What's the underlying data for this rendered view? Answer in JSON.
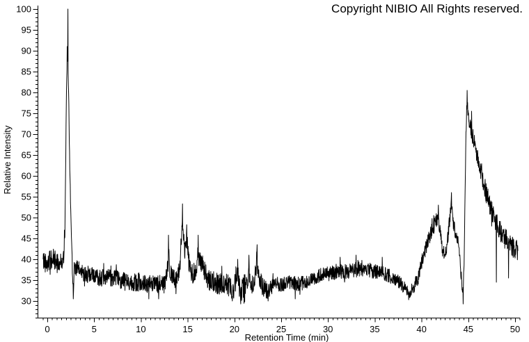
{
  "page": {
    "background": "#ffffff"
  },
  "header": {
    "copyright": "Copyright NIBIO All Rights reserved."
  },
  "chart_data": {
    "type": "line",
    "title": "",
    "xlabel": "Retention Time (min)",
    "ylabel": "Relative Intensity",
    "xlim": [
      0,
      50
    ],
    "ylim": [
      30,
      100
    ],
    "x_major_ticks": [
      0,
      5,
      10,
      15,
      20,
      25,
      30,
      35,
      40,
      45,
      50
    ],
    "x_minor_step": 0.5,
    "y_major_ticks": [
      30,
      35,
      40,
      45,
      50,
      55,
      60,
      65,
      70,
      75,
      80,
      85,
      90,
      95,
      100
    ],
    "y_minor_step": 1,
    "grid": false,
    "legend": null,
    "line_color": "#000000",
    "background_color": "#ffffff",
    "peaks": [
      {
        "t": 2.2,
        "intensity": 100
      },
      {
        "t": 13.0,
        "intensity": 46
      },
      {
        "t": 14.45,
        "intensity": 53
      },
      {
        "t": 14.9,
        "intensity": 48
      },
      {
        "t": 16.1,
        "intensity": 46
      },
      {
        "t": 22.4,
        "intensity": 43.5
      },
      {
        "t": 41.8,
        "intensity": 53
      },
      {
        "t": 43.2,
        "intensity": 56
      },
      {
        "t": 44.85,
        "intensity": 80.5
      }
    ],
    "trace": {
      "sample_step": 0.025,
      "seed": 42,
      "t_start": -0.45,
      "t_end": 50.32,
      "envelope": [
        [
          -0.45,
          39.5
        ],
        [
          0,
          39.5
        ],
        [
          0.6,
          40
        ],
        [
          1.2,
          39
        ],
        [
          1.6,
          39.5
        ],
        [
          1.8,
          41
        ],
        [
          1.88,
          46
        ],
        [
          1.95,
          60
        ],
        [
          2.0,
          72
        ],
        [
          2.05,
          80
        ],
        [
          2.1,
          85
        ],
        [
          2.15,
          87
        ],
        [
          2.2,
          88
        ],
        [
          2.25,
          83
        ],
        [
          2.3,
          76
        ],
        [
          2.35,
          69
        ],
        [
          2.4,
          62
        ],
        [
          2.5,
          52
        ],
        [
          2.6,
          44
        ],
        [
          2.7,
          37
        ],
        [
          2.78,
          33
        ],
        [
          2.9,
          38.5
        ],
        [
          3.3,
          37.5
        ],
        [
          4,
          36.5
        ],
        [
          5,
          36
        ],
        [
          6,
          35.5
        ],
        [
          7,
          35.5
        ],
        [
          8,
          35
        ],
        [
          9,
          34.5
        ],
        [
          10,
          34.5
        ],
        [
          11,
          34
        ],
        [
          12,
          34
        ],
        [
          12.6,
          34.5
        ],
        [
          12.9,
          38
        ],
        [
          13.0,
          41
        ],
        [
          13.1,
          37
        ],
        [
          13.4,
          35.5
        ],
        [
          13.8,
          35
        ],
        [
          14.1,
          37
        ],
        [
          14.3,
          44
        ],
        [
          14.45,
          49
        ],
        [
          14.55,
          46
        ],
        [
          14.7,
          42
        ],
        [
          14.85,
          44
        ],
        [
          14.95,
          44
        ],
        [
          15.1,
          40
        ],
        [
          15.3,
          37
        ],
        [
          15.6,
          36.5
        ],
        [
          15.95,
          38
        ],
        [
          16.1,
          42
        ],
        [
          16.25,
          39
        ],
        [
          16.5,
          39.5
        ],
        [
          16.7,
          37.5
        ],
        [
          17.1,
          35.5
        ],
        [
          17.5,
          34.5
        ],
        [
          18,
          34.5
        ],
        [
          18.5,
          34
        ],
        [
          19,
          34.5
        ],
        [
          19.5,
          33.5
        ],
        [
          19.8,
          32.5
        ],
        [
          20.1,
          34
        ],
        [
          20.35,
          36.5
        ],
        [
          20.65,
          31.5
        ],
        [
          21,
          33.5
        ],
        [
          21.3,
          34.5
        ],
        [
          21.55,
          36.5
        ],
        [
          21.9,
          33.5
        ],
        [
          22.2,
          35.5
        ],
        [
          22.4,
          40
        ],
        [
          22.6,
          36
        ],
        [
          23,
          33.5
        ],
        [
          23.5,
          32.5
        ],
        [
          24,
          33.5
        ],
        [
          24.5,
          34
        ],
        [
          25,
          34
        ],
        [
          26,
          34.5
        ],
        [
          27,
          34
        ],
        [
          28,
          35
        ],
        [
          29,
          36
        ],
        [
          30,
          36.5
        ],
        [
          31,
          37
        ],
        [
          32,
          37
        ],
        [
          33,
          37.5
        ],
        [
          34,
          37.5
        ],
        [
          35,
          37
        ],
        [
          36,
          36.5
        ],
        [
          37,
          35.5
        ],
        [
          37.7,
          34.5
        ],
        [
          38.2,
          33
        ],
        [
          38.7,
          31.8
        ],
        [
          39.2,
          33.5
        ],
        [
          39.7,
          36
        ],
        [
          40.2,
          41
        ],
        [
          40.7,
          44.5
        ],
        [
          41.1,
          47
        ],
        [
          41.45,
          48.5
        ],
        [
          41.75,
          50.5
        ],
        [
          42.0,
          46
        ],
        [
          42.3,
          41.5
        ],
        [
          42.6,
          42
        ],
        [
          42.9,
          47
        ],
        [
          43.1,
          52
        ],
        [
          43.2,
          54
        ],
        [
          43.35,
          49
        ],
        [
          43.55,
          47
        ],
        [
          43.75,
          45.5
        ],
        [
          43.95,
          44
        ],
        [
          44.2,
          37
        ],
        [
          44.4,
          31.5
        ],
        [
          44.55,
          38
        ],
        [
          44.65,
          55
        ],
        [
          44.75,
          70
        ],
        [
          44.85,
          77
        ],
        [
          44.95,
          76
        ],
        [
          45.1,
          73.5
        ],
        [
          45.3,
          71
        ],
        [
          45.6,
          68
        ],
        [
          45.9,
          65.5
        ],
        [
          46.2,
          62.5
        ],
        [
          46.5,
          59.5
        ],
        [
          46.9,
          56
        ],
        [
          47.3,
          53
        ],
        [
          47.7,
          50.5
        ],
        [
          48.1,
          48
        ],
        [
          48.5,
          46.5
        ],
        [
          48.9,
          45
        ],
        [
          49.3,
          44
        ],
        [
          49.7,
          43
        ],
        [
          50.0,
          42.5
        ],
        [
          50.32,
          42
        ]
      ],
      "noise_amplitude": [
        [
          -0.45,
          2.6
        ],
        [
          1.7,
          2.5
        ],
        [
          1.9,
          1.2
        ],
        [
          2.4,
          1.5
        ],
        [
          2.8,
          2.0
        ],
        [
          3.5,
          2.1
        ],
        [
          8,
          2.1
        ],
        [
          12,
          2.2
        ],
        [
          13.5,
          2.3
        ],
        [
          17,
          2.5
        ],
        [
          19,
          2.7
        ],
        [
          21,
          2.7
        ],
        [
          23,
          2.2
        ],
        [
          24,
          1.8
        ],
        [
          28,
          1.7
        ],
        [
          33,
          1.8
        ],
        [
          36.5,
          1.7
        ],
        [
          38.5,
          1.5
        ],
        [
          39.5,
          1.7
        ],
        [
          41,
          1.9
        ],
        [
          43,
          1.8
        ],
        [
          44.5,
          1.4
        ],
        [
          45,
          1.8
        ],
        [
          45.5,
          2.2
        ],
        [
          46.5,
          2.4
        ],
        [
          48,
          2.6
        ],
        [
          50.32,
          2.4
        ]
      ],
      "spikes_up": [
        [
          1.82,
          47
        ],
        [
          2.12,
          91
        ],
        [
          2.2,
          100
        ],
        [
          2.38,
          66
        ],
        [
          12.95,
          45.8
        ],
        [
          14.45,
          53.3
        ],
        [
          14.9,
          48.3
        ],
        [
          16.12,
          45.8
        ],
        [
          20.35,
          40
        ],
        [
          21.55,
          41
        ],
        [
          22.42,
          43.5
        ],
        [
          31.3,
          40.5
        ],
        [
          33.0,
          41
        ],
        [
          35.8,
          40.5
        ],
        [
          41.3,
          50.5
        ],
        [
          41.8,
          53
        ],
        [
          43.2,
          56
        ],
        [
          44.87,
          80.5
        ],
        [
          45.35,
          75.5
        ]
      ],
      "spikes_down": [
        [
          2.77,
          30.5
        ],
        [
          10.85,
          30.5
        ],
        [
          11.9,
          30.5
        ],
        [
          19.78,
          30
        ],
        [
          20.68,
          29.3
        ],
        [
          21.1,
          29.8
        ],
        [
          23.6,
          30
        ],
        [
          26.5,
          30.5
        ],
        [
          38.62,
          30.3
        ],
        [
          44.45,
          29.3
        ],
        [
          48.0,
          34.5
        ],
        [
          49.3,
          35.5
        ]
      ]
    }
  }
}
